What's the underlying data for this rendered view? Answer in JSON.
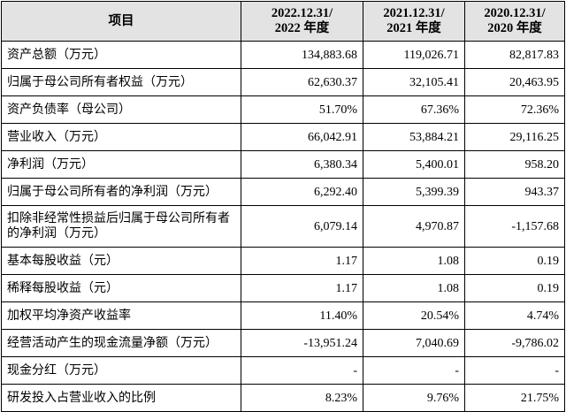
{
  "table": {
    "header": [
      [
        "项目"
      ],
      [
        "2022.12.31/",
        "2022 年度"
      ],
      [
        "2021.12.31/",
        "2021 年度"
      ],
      [
        "2020.12.31/",
        "2020 年度"
      ]
    ],
    "rows": [
      [
        "资产总额（万元）",
        "134,883.68",
        "119,026.71",
        "82,817.83"
      ],
      [
        "归属于母公司所有者权益（万元）",
        "62,630.37",
        "32,105.41",
        "20,463.95"
      ],
      [
        "资产负债率（母公司）",
        "51.70%",
        "67.36%",
        "72.36%"
      ],
      [
        "营业收入（万元）",
        "66,042.91",
        "53,884.21",
        "29,116.25"
      ],
      [
        "净利润（万元）",
        "6,380.34",
        "5,400.01",
        "958.20"
      ],
      [
        "归属于母公司所有者的净利润（万元）",
        "6,292.40",
        "5,399.39",
        "943.37"
      ],
      [
        "扣除非经常性损益后归属于母公司所有者的净利润（万元）",
        "6,079.14",
        "4,970.87",
        "-1,157.68"
      ],
      [
        "基本每股收益（元）",
        "1.17",
        "1.08",
        "0.19"
      ],
      [
        "稀释每股收益（元）",
        "1.17",
        "1.08",
        "0.19"
      ],
      [
        "加权平均净资产收益率",
        "11.40%",
        "20.54%",
        "4.74%"
      ],
      [
        "经营活动产生的现金流量净额（万元）",
        "-13,951.24",
        "7,040.69",
        "-9,786.02"
      ],
      [
        "现金分红（万元）",
        "-",
        "-",
        "-"
      ],
      [
        "研发投入占营业收入的比例",
        "8.23%",
        "9.76%",
        "21.75%"
      ]
    ]
  }
}
